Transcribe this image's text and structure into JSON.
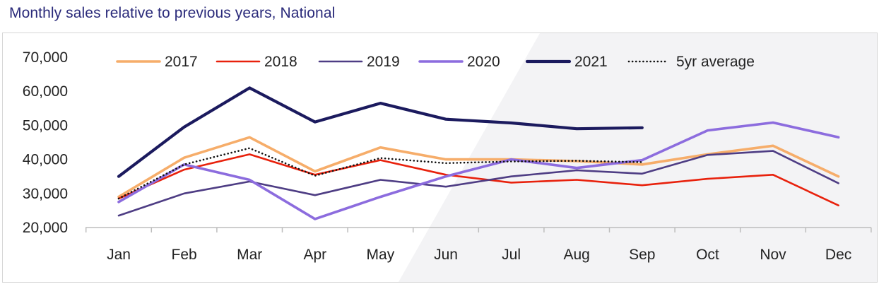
{
  "title": "Monthly sales relative to previous years, National",
  "chart_data": {
    "type": "line",
    "title": "Monthly sales relative to previous years, National",
    "xlabel": "",
    "ylabel": "",
    "ylim": [
      20000,
      70000
    ],
    "yticks": [
      20000,
      30000,
      40000,
      50000,
      60000,
      70000
    ],
    "ytick_labels": [
      "20,000",
      "30,000",
      "40,000",
      "50,000",
      "60,000",
      "70,000"
    ],
    "grid": false,
    "legend_position": "top",
    "categories": [
      "Jan",
      "Feb",
      "Mar",
      "Apr",
      "May",
      "Jun",
      "Jul",
      "Aug",
      "Sep",
      "Oct",
      "Nov",
      "Dec"
    ],
    "series": [
      {
        "name": "2017",
        "color": "#f6ad6a",
        "style": "solid",
        "values": [
          29000,
          40500,
          46500,
          36500,
          43500,
          40000,
          40000,
          39500,
          38500,
          41500,
          44000,
          35000
        ]
      },
      {
        "name": "2018",
        "color": "#e8210c",
        "style": "solid",
        "values": [
          28500,
          37000,
          41500,
          35500,
          39800,
          35500,
          33200,
          34000,
          32400,
          34300,
          35500,
          26500
        ]
      },
      {
        "name": "2019",
        "color": "#4e3d84",
        "style": "solid",
        "values": [
          23500,
          30000,
          33500,
          29500,
          34000,
          32000,
          35000,
          36800,
          35800,
          41300,
          42500,
          33000
        ]
      },
      {
        "name": "2020",
        "color": "#8c6cde",
        "style": "solid",
        "values": [
          27500,
          38500,
          34000,
          22500,
          29000,
          35000,
          40000,
          37500,
          39800,
          48500,
          50800,
          46500
        ]
      },
      {
        "name": "2021",
        "color": "#1b1a5e",
        "style": "solid",
        "values": [
          35000,
          49500,
          61000,
          51000,
          56500,
          51800,
          50700,
          49000,
          49300,
          null,
          null,
          null
        ]
      },
      {
        "name": "5yr average",
        "color": "#111111",
        "style": "dotted",
        "values": [
          28500,
          38500,
          43300,
          35200,
          40400,
          38900,
          39400,
          39600,
          39200,
          null,
          null,
          null
        ]
      }
    ]
  }
}
